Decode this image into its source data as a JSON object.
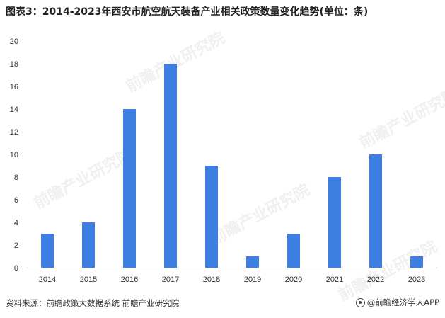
{
  "header": {
    "title": "图表3：2014-2023年西安市航空航天装备产业相关政策数量变化趋势(单位：条)"
  },
  "chart_data": {
    "type": "bar",
    "title": "图表3：2014-2023年西安市航空航天装备产业相关政策数量变化趋势(单位：条)",
    "categories": [
      "2014",
      "2015",
      "2016",
      "2017",
      "2018",
      "2019",
      "2020",
      "2021",
      "2022",
      "2023"
    ],
    "series": [
      {
        "values": [
          3,
          4,
          14,
          18,
          9,
          1,
          3,
          8,
          10,
          1
        ]
      }
    ],
    "ylim": [
      0,
      20
    ],
    "yticks": [
      0,
      2,
      4,
      6,
      8,
      10,
      12,
      14,
      16,
      18,
      20
    ],
    "grid": false,
    "legend": "none",
    "bar_color": "#3d7fe0"
  },
  "watermark": {
    "text": "前瞻产业研究院"
  },
  "footer": {
    "source": "资料来源：前瞻政策大数据系统 前瞻产业研究院",
    "brand": "@前瞻经济学人APP"
  }
}
